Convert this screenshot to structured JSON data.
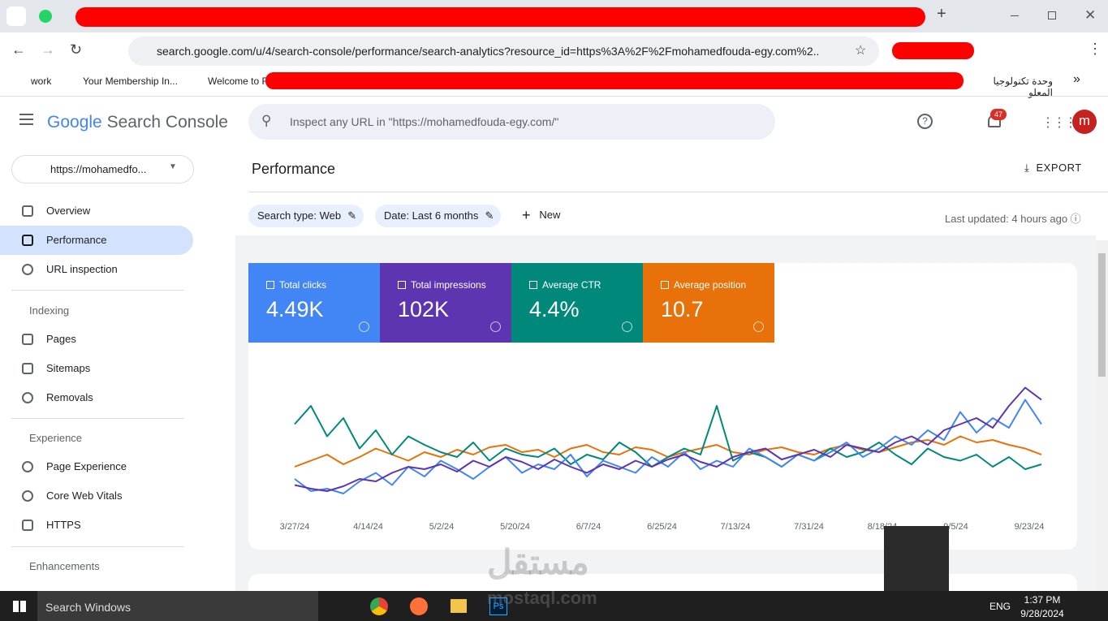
{
  "browser": {
    "address": "search.google.com/u/4/search-console/performance/search-analytics?resource_id=https%3A%2F%2Fmohamedfouda-egy.com%2...",
    "bookmarks": [
      "work",
      "Your Membership In...",
      "Welcome to F",
      "وحدة تكنولوجيا المعلو"
    ]
  },
  "header": {
    "logo_google": "Google",
    "logo_product": "Search Console",
    "search_placeholder": "Inspect any URL in \"https://mohamedfouda-egy.com/\"",
    "notifications": "47",
    "avatar": "m"
  },
  "sidebar": {
    "property": "https://mohamedfo...",
    "items": [
      "Overview",
      "Performance",
      "URL inspection"
    ],
    "sections": [
      {
        "title": "Indexing",
        "items": [
          "Pages",
          "Sitemaps",
          "Removals"
        ]
      },
      {
        "title": "Experience",
        "items": [
          "Page Experience",
          "Core Web Vitals",
          "HTTPS"
        ]
      },
      {
        "title": "Enhancements",
        "items": []
      }
    ]
  },
  "main": {
    "title": "Performance",
    "export": "EXPORT",
    "chips": [
      "Search type: Web",
      "Date: Last 6 months"
    ],
    "new": "New",
    "last_updated": "Last updated: 4 hours ago",
    "cards": [
      {
        "label": "Total clicks",
        "value": "4.49K",
        "color": "#4285f4"
      },
      {
        "label": "Total impressions",
        "value": "102K",
        "color": "#5e35b1"
      },
      {
        "label": "Average CTR",
        "value": "4.4%",
        "color": "#00897b"
      },
      {
        "label": "Average position",
        "value": "10.7",
        "color": "#e8710a"
      }
    ]
  },
  "chart": {
    "type": "line",
    "ylim": [
      0,
      100
    ],
    "xticks": [
      "3/27/24",
      "4/14/24",
      "5/2/24",
      "5/20/24",
      "6/7/24",
      "6/25/24",
      "7/13/24",
      "7/31/24",
      "8/18/24",
      "9/5/24",
      "9/23/24"
    ],
    "series": [
      {
        "name": "Total clicks",
        "color": "#4285f4",
        "values": [
          20,
          10,
          12,
          8,
          18,
          25,
          15,
          30,
          22,
          35,
          28,
          20,
          30,
          38,
          25,
          32,
          28,
          40,
          22,
          35,
          30,
          25,
          38,
          30,
          42,
          28,
          35,
          30,
          45,
          38,
          30,
          40,
          35,
          42,
          50,
          38,
          45,
          55,
          48,
          60,
          52,
          75,
          58,
          70,
          62,
          85,
          65
        ]
      },
      {
        "name": "Total impressions",
        "color": "#5e35b1",
        "values": [
          15,
          12,
          10,
          14,
          20,
          18,
          25,
          30,
          28,
          32,
          26,
          35,
          30,
          38,
          34,
          28,
          36,
          30,
          25,
          32,
          28,
          35,
          30,
          36,
          40,
          34,
          30,
          38,
          42,
          45,
          36,
          40,
          44,
          38,
          48,
          45,
          42,
          50,
          55,
          48,
          60,
          65,
          70,
          62,
          80,
          95,
          85
        ]
      },
      {
        "name": "Average CTR",
        "color": "#00897b",
        "values": [
          65,
          80,
          55,
          70,
          45,
          60,
          40,
          55,
          48,
          42,
          38,
          50,
          35,
          45,
          40,
          38,
          45,
          32,
          40,
          36,
          50,
          42,
          30,
          38,
          45,
          40,
          80,
          35,
          42,
          38,
          30,
          40,
          35,
          45,
          38,
          42,
          50,
          40,
          32,
          45,
          38,
          35,
          40,
          30,
          38,
          28,
          32
        ]
      },
      {
        "name": "Average position",
        "color": "#e8710a",
        "values": [
          30,
          35,
          40,
          32,
          38,
          45,
          40,
          35,
          42,
          38,
          44,
          40,
          46,
          48,
          42,
          44,
          38,
          45,
          48,
          42,
          40,
          46,
          44,
          38,
          42,
          45,
          48,
          42,
          40,
          44,
          46,
          42,
          40,
          45,
          48,
          44,
          42,
          46,
          50,
          52,
          48,
          55,
          50,
          52,
          48,
          45,
          40
        ]
      }
    ]
  },
  "taskbar": {
    "search": "Search Windows",
    "lang": "ENG",
    "time": "1:37 PM",
    "date": "9/28/2024"
  },
  "watermark": {
    "arabic": "مستقل",
    "latin": "mostaql.com"
  }
}
